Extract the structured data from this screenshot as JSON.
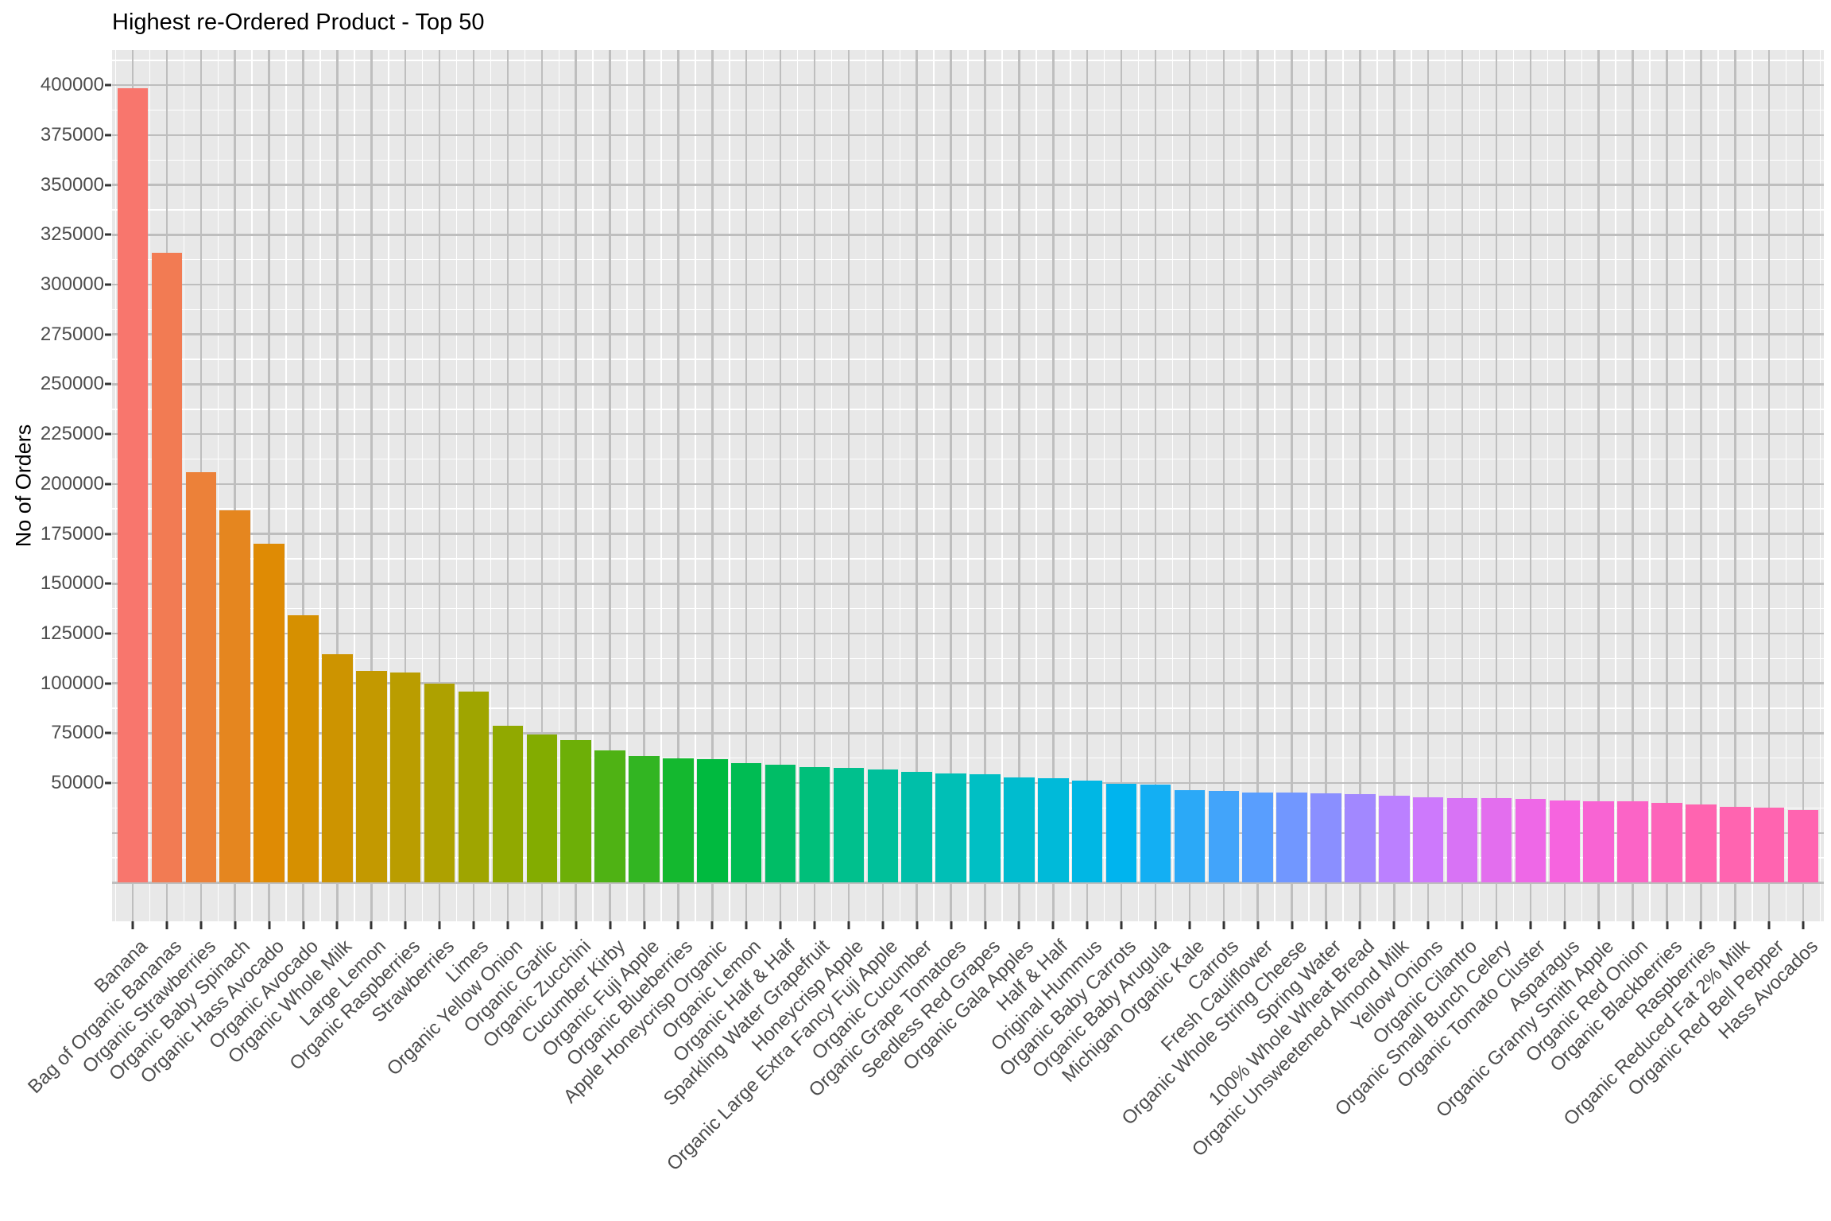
{
  "title": "Highest re-Ordered Product - Top 50",
  "y_axis": {
    "label": "No of Orders",
    "tick_labels": [
      "50000",
      "75000",
      "100000",
      "125000",
      "150000",
      "175000",
      "200000",
      "225000",
      "250000",
      "275000",
      "300000",
      "325000",
      "350000",
      "375000",
      "400000"
    ]
  },
  "chart_data": {
    "type": "bar",
    "title": "Highest re-Ordered Product - Top 50",
    "xlabel": "",
    "ylabel": "No of Orders",
    "categories": [
      "Banana",
      "Bag of Organic Bananas",
      "Organic Strawberries",
      "Organic Baby Spinach",
      "Organic Hass Avocado",
      "Organic Avocado",
      "Organic Whole Milk",
      "Large Lemon",
      "Organic Raspberries",
      "Strawberries",
      "Limes",
      "Organic Yellow Onion",
      "Organic Garlic",
      "Organic Zucchini",
      "Cucumber Kirby",
      "Organic Fuji Apple",
      "Organic Blueberries",
      "Apple Honeycrisp Organic",
      "Organic Lemon",
      "Organic Half & Half",
      "Sparkling Water Grapefruit",
      "Honeycrisp Apple",
      "Organic Large Extra Fancy Fuji Apple",
      "Organic Cucumber",
      "Organic Grape Tomatoes",
      "Seedless Red Grapes",
      "Organic Gala Apples",
      "Half & Half",
      "Original Hummus",
      "Organic Baby Carrots",
      "Organic Baby Arugula",
      "Michigan Organic Kale",
      "Carrots",
      "Fresh Cauliflower",
      "Organic Whole String Cheese",
      "Spring Water",
      "100% Whole Wheat Bread",
      "Organic Unsweetened Almond Milk",
      "Yellow Onions",
      "Organic Cilantro",
      "Organic Small Bunch Celery",
      "Organic Tomato Cluster",
      "Asparagus",
      "Organic Granny Smith Apple",
      "Organic Red Onion",
      "Organic Blackberries",
      "Raspberries",
      "Organic Reduced Fat 2% Milk",
      "Organic Red Bell Pepper",
      "Hass Avocados"
    ],
    "values": [
      398600,
      315900,
      205900,
      186900,
      170000,
      134000,
      114500,
      106300,
      105400,
      99800,
      95700,
      78800,
      74200,
      71600,
      66500,
      63700,
      62500,
      62000,
      60100,
      59300,
      58000,
      57500,
      56800,
      55700,
      54700,
      54400,
      52700,
      52300,
      51400,
      49700,
      49100,
      46300,
      45900,
      45400,
      45100,
      45000,
      44500,
      43700,
      42900,
      42600,
      42500,
      41900,
      41100,
      41000,
      40700,
      40100,
      39100,
      37900,
      37700,
      36500
    ],
    "ylim": [
      -19300,
      418500
    ],
    "y_ticks": [
      50000,
      75000,
      100000,
      125000,
      150000,
      175000,
      200000,
      225000,
      250000,
      275000,
      300000,
      325000,
      350000,
      375000,
      400000
    ],
    "grid": {
      "major": "gray lines every 25000 and at each category",
      "minor": "white lines every 12500 and between categories",
      "panel_background": "gray"
    },
    "legend_position": "none",
    "palette": "ggplot2 rainbow hue, one color per bar"
  },
  "style": {
    "panel_bg": "#E8E8E8",
    "grid_major_color": "#BEBEBE",
    "grid_minor_color": "#FFFFFF",
    "axis_text_color": "#4D4D4D",
    "tick_mark_color": "#333333",
    "title_color": "#000000",
    "palette_anchors": [
      "#F8766D",
      "#DE8C00",
      "#B79F00",
      "#7CAE00",
      "#00BA38",
      "#00C08B",
      "#00BFC4",
      "#00B4F0",
      "#619CFF",
      "#C77CFF",
      "#F564E3",
      "#FF64B0",
      "#F8766D"
    ]
  }
}
